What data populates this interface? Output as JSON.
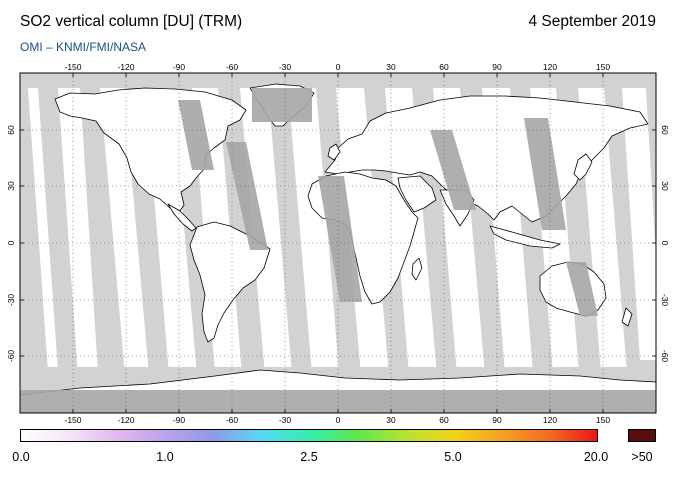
{
  "header": {
    "title": "SO2 vertical column [DU] (TRM)",
    "date": "4 September 2019",
    "credit": "OMI  –  KNMI/FMI/NASA"
  },
  "map": {
    "projection": "equirectangular",
    "lon_ticks": [
      "-150",
      "-120",
      "-90",
      "-60",
      "-30",
      "0",
      "30",
      "60",
      "90",
      "120",
      "150"
    ],
    "lat_ticks": [
      "60",
      "30",
      "0",
      "-30",
      "-60"
    ],
    "colors": {
      "ocean_nodata": "#d2d2d2",
      "land_nodata": "#a6a6a6",
      "observed": "#ffffff",
      "coast": "#000000"
    }
  },
  "colorbar": {
    "labels": [
      "0.0",
      "1.0",
      "2.5",
      "5.0",
      "20.0"
    ],
    "over_label": ">50",
    "stops": [
      "#ffffff",
      "#f4e6f7",
      "#e3b8ee",
      "#bda3ea",
      "#8f9ae8",
      "#5ad7f2",
      "#33eeb0",
      "#5ee84c",
      "#b5e333",
      "#f2d21a",
      "#f5a223",
      "#f36a23",
      "#e8141a"
    ],
    "over_color": "#5a0d0d"
  }
}
